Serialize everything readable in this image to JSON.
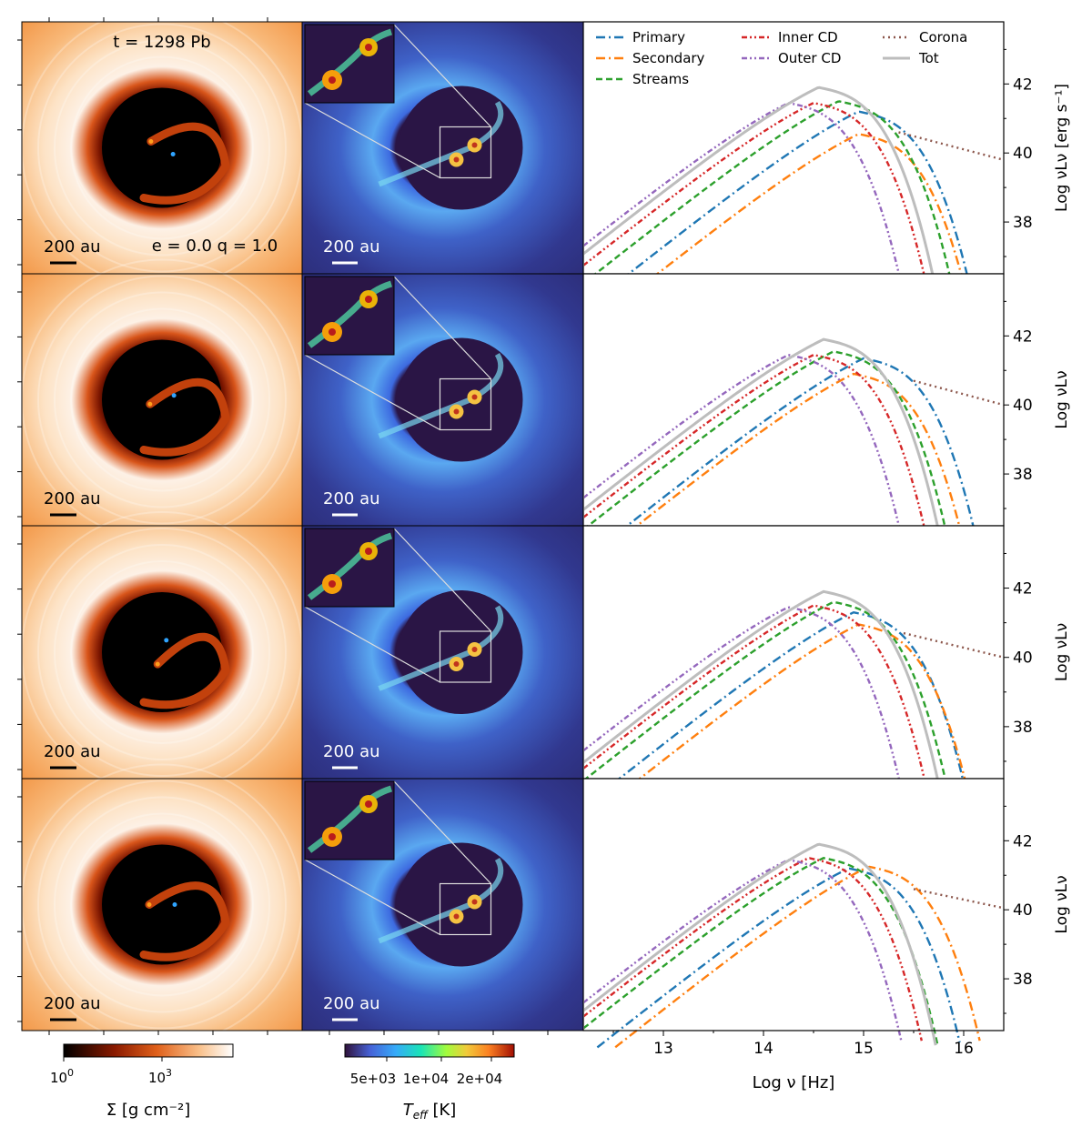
{
  "figure": {
    "time_label": "t = 1298 Pb",
    "params_label": "e = 0.0 q = 1.0",
    "scale_bar_label": "200 au"
  },
  "colorbars": {
    "sigma": {
      "label": "Σ [g cm⁻²]",
      "ticks": [
        {
          "base": "10",
          "exp": "0"
        },
        {
          "base": "10",
          "exp": "3"
        }
      ]
    },
    "teff": {
      "label_main": "T",
      "label_sub": "eff",
      "label_unit": " [K]",
      "ticks": [
        "5e+03",
        "1e+04",
        "2e+04"
      ]
    }
  },
  "colors": {
    "Primary": "#1f77b4",
    "Secondary": "#ff7f0e",
    "Streams": "#2ca02c",
    "Inner CD": "#d62728",
    "Outer CD": "#9467bd",
    "Corona": "#8c564b",
    "Tot": "#bdbdbd"
  },
  "chart_data": [
    {
      "type": "line",
      "xlabel": "",
      "ylabel": "Log νLν [erg s⁻¹]",
      "xlim": [
        12.2,
        16.4
      ],
      "ylim": [
        36.5,
        43.8
      ],
      "yticks": [
        38,
        40,
        42
      ],
      "legend_placement": "top",
      "legend": [
        "Primary",
        "Secondary",
        "Streams",
        "Inner CD",
        "Outer CD",
        "Corona",
        "Tot"
      ],
      "series": [
        {
          "name": "Primary",
          "peak_x": 14.95,
          "peak_y": 41.2,
          "width": 1.5
        },
        {
          "name": "Secondary",
          "peak_x": 14.95,
          "peak_y": 40.55,
          "width": 1.45
        },
        {
          "name": "Streams",
          "peak_x": 14.75,
          "peak_y": 41.5,
          "width": 1.5
        },
        {
          "name": "Inner CD",
          "peak_x": 14.5,
          "peak_y": 41.45,
          "width": 1.5
        },
        {
          "name": "Outer CD",
          "peak_x": 14.25,
          "peak_y": 41.45,
          "width": 1.5
        },
        {
          "name": "Corona",
          "x": [
            15.35,
            16.4
          ],
          "y": [
            40.6,
            39.8
          ]
        },
        {
          "name": "Tot",
          "peak_x": 14.55,
          "peak_y": 41.9,
          "width": 1.6
        }
      ]
    },
    {
      "type": "line",
      "xlabel": "",
      "ylabel": "Log νLν",
      "xlim": [
        12.2,
        16.4
      ],
      "ylim": [
        36.5,
        43.8
      ],
      "yticks": [
        38,
        40,
        42
      ],
      "series": [
        {
          "name": "Primary",
          "peak_x": 15.0,
          "peak_y": 41.35,
          "width": 1.5
        },
        {
          "name": "Secondary",
          "peak_x": 14.9,
          "peak_y": 40.9,
          "width": 1.45
        },
        {
          "name": "Streams",
          "peak_x": 14.7,
          "peak_y": 41.55,
          "width": 1.5
        },
        {
          "name": "Inner CD",
          "peak_x": 14.5,
          "peak_y": 41.45,
          "width": 1.5
        },
        {
          "name": "Outer CD",
          "peak_x": 14.25,
          "peak_y": 41.45,
          "width": 1.5
        },
        {
          "name": "Corona",
          "x": [
            15.5,
            16.4
          ],
          "y": [
            40.7,
            40.0
          ]
        },
        {
          "name": "Tot",
          "peak_x": 14.6,
          "peak_y": 41.9,
          "width": 1.6
        }
      ]
    },
    {
      "type": "line",
      "xlabel": "",
      "ylabel": "Log νLν",
      "xlim": [
        12.2,
        16.4
      ],
      "ylim": [
        36.5,
        43.8
      ],
      "yticks": [
        38,
        40,
        42
      ],
      "series": [
        {
          "name": "Primary",
          "peak_x": 14.9,
          "peak_y": 41.3,
          "width": 1.5
        },
        {
          "name": "Secondary",
          "peak_x": 14.95,
          "peak_y": 40.95,
          "width": 1.45
        },
        {
          "name": "Streams",
          "peak_x": 14.7,
          "peak_y": 41.6,
          "width": 1.5
        },
        {
          "name": "Inner CD",
          "peak_x": 14.5,
          "peak_y": 41.5,
          "width": 1.5
        },
        {
          "name": "Outer CD",
          "peak_x": 14.25,
          "peak_y": 41.45,
          "width": 1.5
        },
        {
          "name": "Corona",
          "x": [
            15.4,
            16.4
          ],
          "y": [
            40.7,
            40.0
          ]
        },
        {
          "name": "Tot",
          "peak_x": 14.6,
          "peak_y": 41.9,
          "width": 1.6
        }
      ]
    },
    {
      "type": "line",
      "xlabel": "Log ν [Hz]",
      "ylabel": "Log νLν",
      "xlim": [
        12.2,
        16.4
      ],
      "ylim": [
        36.5,
        43.8
      ],
      "yticks": [
        38,
        40,
        42
      ],
      "xticks": [
        13,
        14,
        15,
        16
      ],
      "series": [
        {
          "name": "Primary",
          "peak_x": 14.85,
          "peak_y": 41.2,
          "width": 1.5
        },
        {
          "name": "Secondary",
          "peak_x": 15.05,
          "peak_y": 41.25,
          "width": 1.5
        },
        {
          "name": "Streams",
          "peak_x": 14.6,
          "peak_y": 41.5,
          "width": 1.5
        },
        {
          "name": "Inner CD",
          "peak_x": 14.45,
          "peak_y": 41.5,
          "width": 1.5
        },
        {
          "name": "Outer CD",
          "peak_x": 14.25,
          "peak_y": 41.45,
          "width": 1.5
        },
        {
          "name": "Corona",
          "x": [
            15.5,
            16.4
          ],
          "y": [
            40.6,
            40.05
          ]
        },
        {
          "name": "Tot",
          "peak_x": 14.55,
          "peak_y": 41.9,
          "width": 1.6
        }
      ]
    }
  ]
}
